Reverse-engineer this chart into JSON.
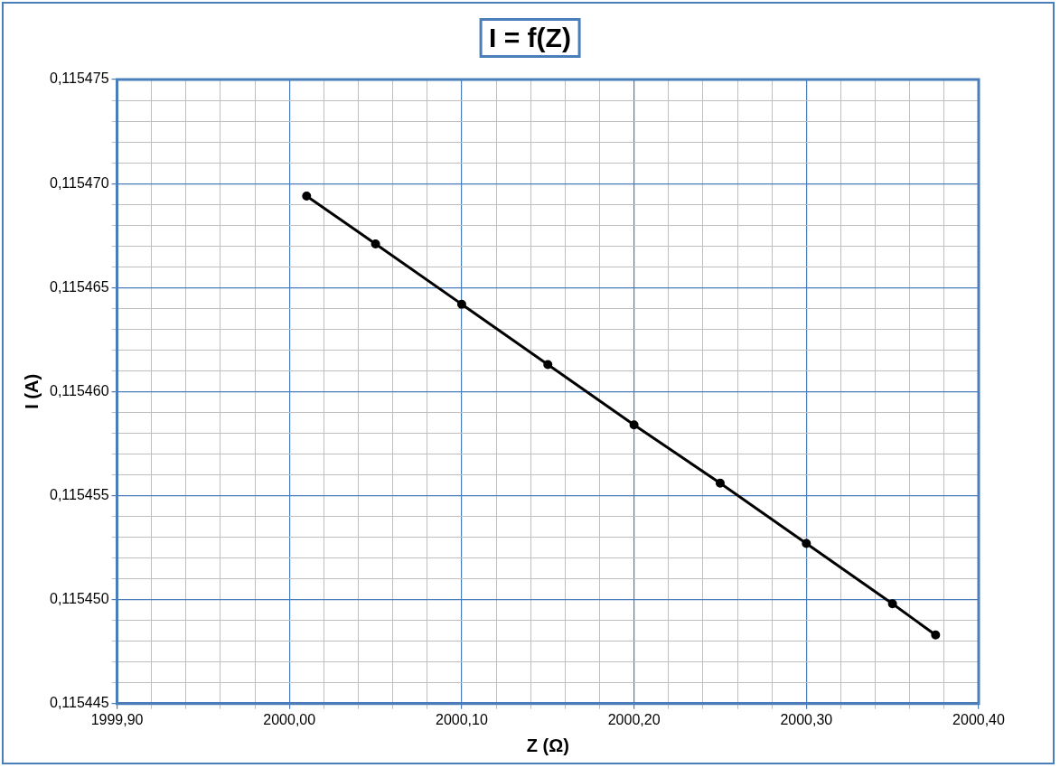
{
  "chart_data": {
    "type": "line",
    "title": "I = f(Z)",
    "xlabel": "Z (Ω)",
    "ylabel": "I (A)",
    "x": [
      2000.01,
      2000.05,
      2000.1,
      2000.15,
      2000.2,
      2000.25,
      2000.3,
      2000.35,
      2000.375
    ],
    "series": [
      {
        "color": "#000000",
        "values": [
          0.1154694,
          0.1154671,
          0.1154642,
          0.1154613,
          0.1154584,
          0.1154556,
          0.1154527,
          0.1154498,
          0.1154483
        ]
      }
    ],
    "xlim": [
      1999.9,
      2000.4
    ],
    "xticks": [
      {
        "value": 1999.9,
        "label": "1999,90"
      },
      {
        "value": 1999.92,
        "label": null
      },
      {
        "value": 1999.94,
        "label": null
      },
      {
        "value": 1999.96,
        "label": null
      },
      {
        "value": 1999.98,
        "label": null
      },
      {
        "value": 2000.0,
        "label": "2000,00"
      },
      {
        "value": 2000.02,
        "label": null
      },
      {
        "value": 2000.04,
        "label": null
      },
      {
        "value": 2000.06,
        "label": null
      },
      {
        "value": 2000.08,
        "label": null
      },
      {
        "value": 2000.1,
        "label": "2000,10"
      },
      {
        "value": 2000.12,
        "label": null
      },
      {
        "value": 2000.14,
        "label": null
      },
      {
        "value": 2000.16,
        "label": null
      },
      {
        "value": 2000.18,
        "label": null
      },
      {
        "value": 2000.2,
        "label": "2000,20"
      },
      {
        "value": 2000.22,
        "label": null
      },
      {
        "value": 2000.24,
        "label": null
      },
      {
        "value": 2000.26,
        "label": null
      },
      {
        "value": 2000.28,
        "label": null
      },
      {
        "value": 2000.3,
        "label": "2000,30"
      },
      {
        "value": 2000.32,
        "label": null
      },
      {
        "value": 2000.34,
        "label": null
      },
      {
        "value": 2000.36,
        "label": null
      },
      {
        "value": 2000.38,
        "label": null
      },
      {
        "value": 2000.4,
        "label": "2000,40"
      }
    ],
    "ylim": [
      0.115445,
      0.115475
    ],
    "yticks": [
      {
        "value": 0.115445,
        "label": "0,115445"
      },
      {
        "value": 0.115446,
        "label": null
      },
      {
        "value": 0.115447,
        "label": null
      },
      {
        "value": 0.115448,
        "label": null
      },
      {
        "value": 0.115449,
        "label": null
      },
      {
        "value": 0.11545,
        "label": "0,115450"
      },
      {
        "value": 0.115451,
        "label": null
      },
      {
        "value": 0.115452,
        "label": null
      },
      {
        "value": 0.115453,
        "label": null
      },
      {
        "value": 0.115454,
        "label": null
      },
      {
        "value": 0.115455,
        "label": "0,115455"
      },
      {
        "value": 0.115456,
        "label": null
      },
      {
        "value": 0.115457,
        "label": null
      },
      {
        "value": 0.115458,
        "label": null
      },
      {
        "value": 0.115459,
        "label": null
      },
      {
        "value": 0.11546,
        "label": "0,115460"
      },
      {
        "value": 0.115461,
        "label": null
      },
      {
        "value": 0.115462,
        "label": null
      },
      {
        "value": 0.115463,
        "label": null
      },
      {
        "value": 0.115464,
        "label": null
      },
      {
        "value": 0.115465,
        "label": "0,115465"
      },
      {
        "value": 0.115466,
        "label": null
      },
      {
        "value": 0.115467,
        "label": null
      },
      {
        "value": 0.115468,
        "label": null
      },
      {
        "value": 0.115469,
        "label": null
      },
      {
        "value": 0.11547,
        "label": "0,115470"
      },
      {
        "value": 0.115471,
        "label": null
      },
      {
        "value": 0.115472,
        "label": null
      },
      {
        "value": 0.115473,
        "label": null
      },
      {
        "value": 0.115474,
        "label": null
      },
      {
        "value": 0.115475,
        "label": "0,115475"
      }
    ],
    "grid": true,
    "marker": "circle",
    "line_style": "solid",
    "legend": false
  }
}
